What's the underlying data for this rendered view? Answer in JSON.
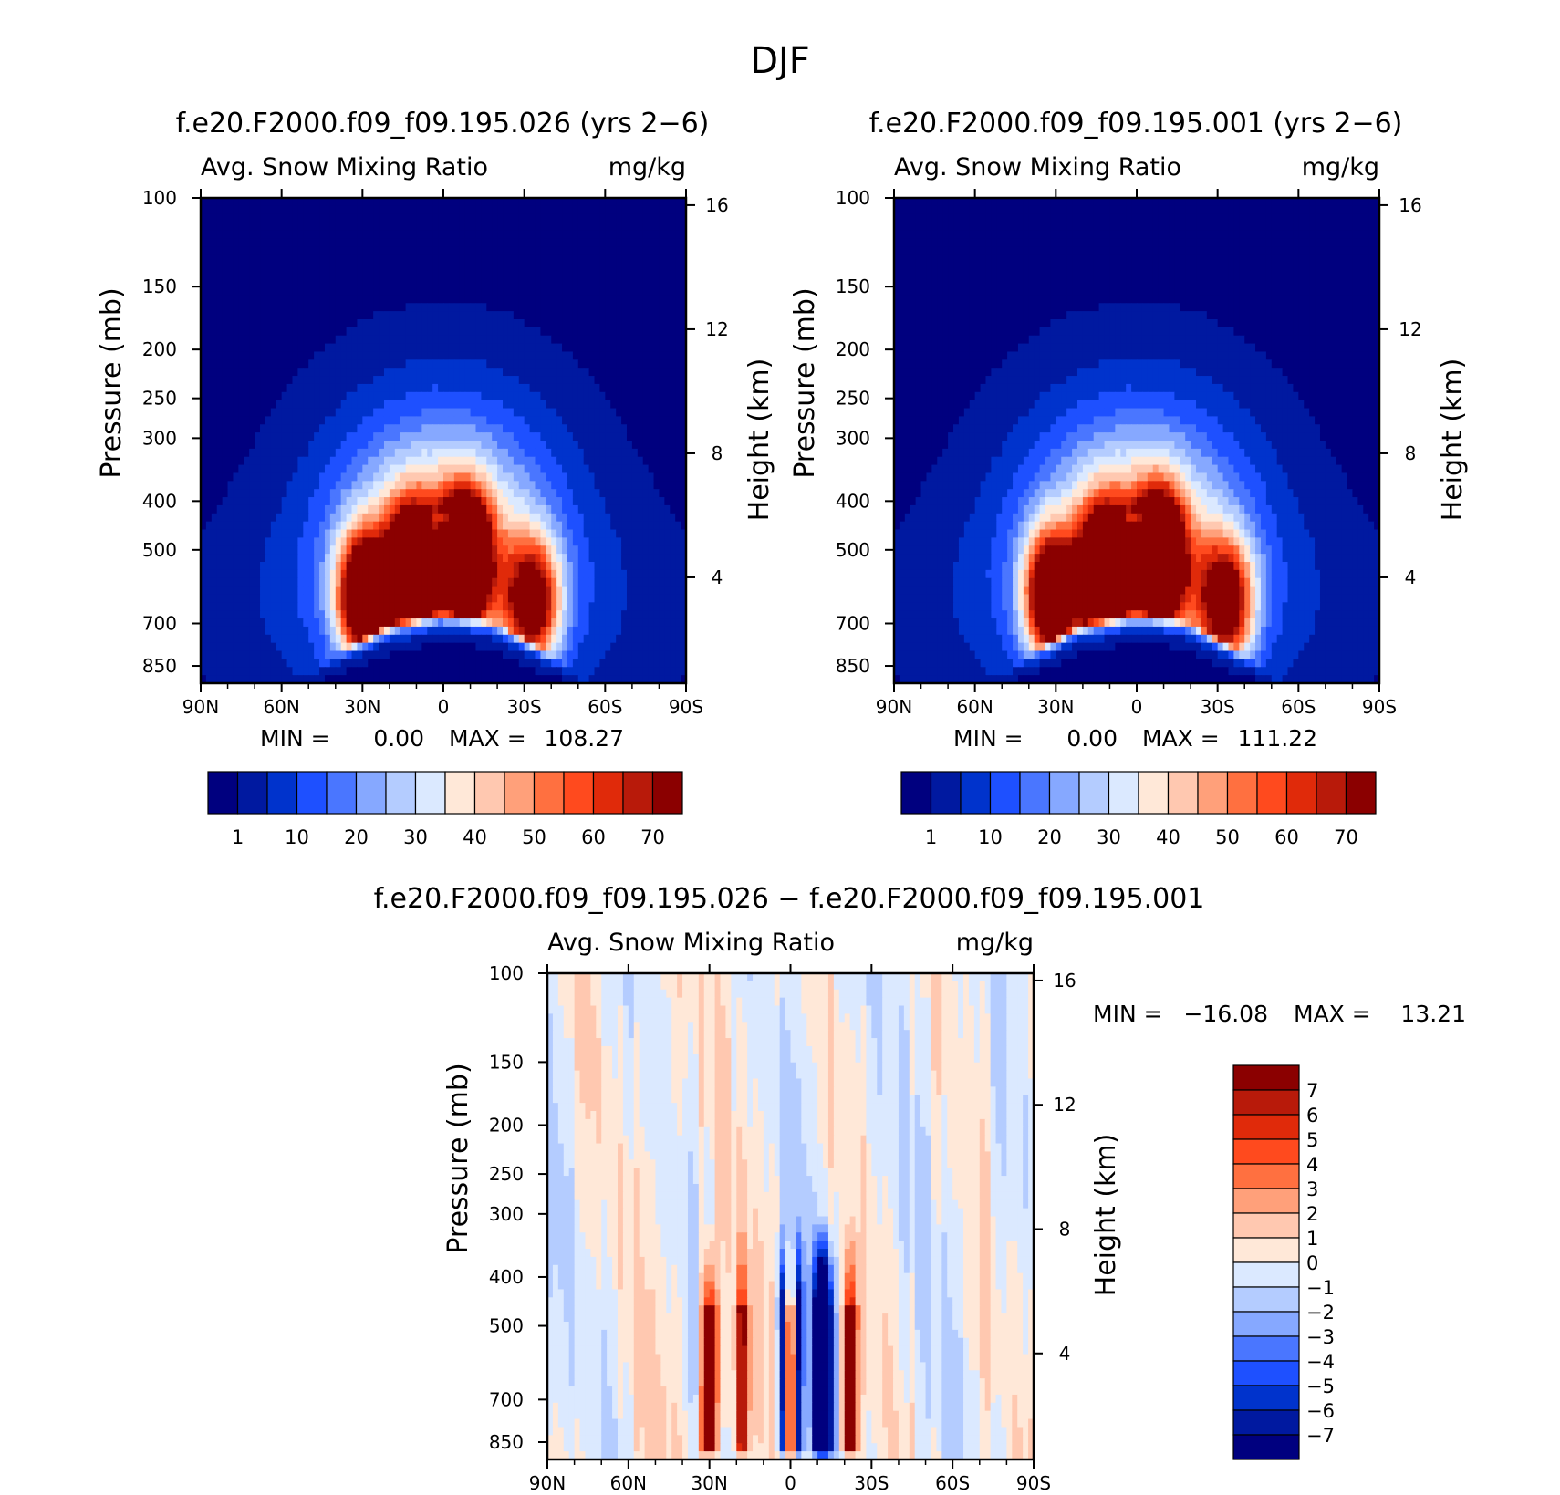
{
  "figure": {
    "title": "DJF",
    "colors": {
      "sequential": [
        "#00007f",
        "#0019a0",
        "#0033cc",
        "#1e50ff",
        "#4a76ff",
        "#86a8ff",
        "#b4ccff",
        "#dbe9ff",
        "#ffe8d8",
        "#ffc8b0",
        "#ffa07a",
        "#ff7040",
        "#ff4a1e",
        "#e02a0a",
        "#b81a0a",
        "#8b0000"
      ],
      "diverging": [
        "#00007f",
        "#0019a0",
        "#0033cc",
        "#1e50ff",
        "#4a76ff",
        "#86a8ff",
        "#b4ccff",
        "#dbe9ff",
        "#ffe8d8",
        "#ffc8b0",
        "#ffa07a",
        "#ff7040",
        "#ff4a1e",
        "#e02a0a",
        "#b81a0a",
        "#8b0000"
      ]
    }
  },
  "chart_data": [
    {
      "type": "heatmap",
      "title": "f.e20.F2000.f09_f09.195.026 (yrs 2−6)",
      "variable": "Avg. Snow Mixing Ratio",
      "units": "mg/kg",
      "xlabel": "",
      "ylabel": "Pressure (mb)",
      "ylabel_right": "Height (km)",
      "x_ticks": [
        "90N",
        "60N",
        "30N",
        "0",
        "30S",
        "60S",
        "90S"
      ],
      "y_ticks": [
        "100",
        "150",
        "200",
        "250",
        "300",
        "400",
        "500",
        "700",
        "850"
      ],
      "y_ticks_right": [
        "16",
        "12",
        "8",
        "4"
      ],
      "ylim": [
        100,
        920
      ],
      "log_scale_y": true,
      "min_label": "MIN =",
      "min_value": "0.00",
      "max_label": "MAX =",
      "max_value": "108.27",
      "colorbar_labels": [
        "1",
        "10",
        "20",
        "30",
        "40",
        "50",
        "60",
        "70"
      ],
      "colorbar_orientation": "horizontal",
      "field": {
        "peak_value": 108.27,
        "max_lobes_lat_pressure": [
          [
            -33,
            640
          ],
          [
            -8,
            520
          ],
          [
            12,
            560
          ],
          [
            30,
            620
          ]
        ],
        "minimum_region": "equatorial lower troposphere below 700 mb (~0)",
        "top_level_value": "<1"
      }
    },
    {
      "type": "heatmap",
      "title": "f.e20.F2000.f09_f09.195.001 (yrs 2−6)",
      "variable": "Avg. Snow Mixing Ratio",
      "units": "mg/kg",
      "xlabel": "",
      "ylabel": "Pressure (mb)",
      "ylabel_right": "Height (km)",
      "x_ticks": [
        "90N",
        "60N",
        "30N",
        "0",
        "30S",
        "60S",
        "90S"
      ],
      "y_ticks": [
        "100",
        "150",
        "200",
        "250",
        "300",
        "400",
        "500",
        "700",
        "850"
      ],
      "y_ticks_right": [
        "16",
        "12",
        "8",
        "4"
      ],
      "ylim": [
        100,
        920
      ],
      "log_scale_y": true,
      "min_label": "MIN =",
      "min_value": "0.00",
      "max_label": "MAX =",
      "max_value": "111.22",
      "colorbar_labels": [
        "1",
        "10",
        "20",
        "30",
        "40",
        "50",
        "60",
        "70"
      ],
      "colorbar_orientation": "horizontal",
      "field": {
        "peak_value": 111.22,
        "max_lobes_lat_pressure": [
          [
            -33,
            640
          ],
          [
            -8,
            520
          ],
          [
            12,
            560
          ],
          [
            32,
            620
          ]
        ],
        "minimum_region": "equatorial lower troposphere below 700 mb (~0)",
        "top_level_value": "<1"
      }
    },
    {
      "type": "heatmap",
      "title": "f.e20.F2000.f09_f09.195.026 − f.e20.F2000.f09_f09.195.001",
      "variable": "Avg. Snow Mixing Ratio",
      "units": "mg/kg",
      "xlabel": "",
      "ylabel": "Pressure (mb)",
      "ylabel_right": "Height (km)",
      "x_ticks": [
        "90N",
        "60N",
        "30N",
        "0",
        "30S",
        "60S",
        "90S"
      ],
      "y_ticks": [
        "100",
        "150",
        "200",
        "250",
        "300",
        "400",
        "500",
        "700",
        "850"
      ],
      "y_ticks_right": [
        "16",
        "12",
        "8",
        "4"
      ],
      "ylim": [
        100,
        920
      ],
      "log_scale_y": true,
      "min_label": "MIN =",
      "min_value": "−16.08",
      "max_label": "MAX =",
      "max_value": "13.21",
      "colorbar_labels": [
        "7",
        "6",
        "5",
        "4",
        "3",
        "2",
        "1",
        "0",
        "−1",
        "−2",
        "−3",
        "−4",
        "−5",
        "−6",
        "−7"
      ],
      "colorbar_orientation": "vertical",
      "field": {
        "min_value": -16.08,
        "max_value": 13.21,
        "negative_bands_lat": [
          -12,
          -3,
          3
        ],
        "positive_bands_lat": [
          -22,
          0,
          18,
          30
        ],
        "anomaly_pressure_range": [
          300,
          880
        ],
        "background_values": "-1 to 1 elsewhere"
      }
    }
  ]
}
